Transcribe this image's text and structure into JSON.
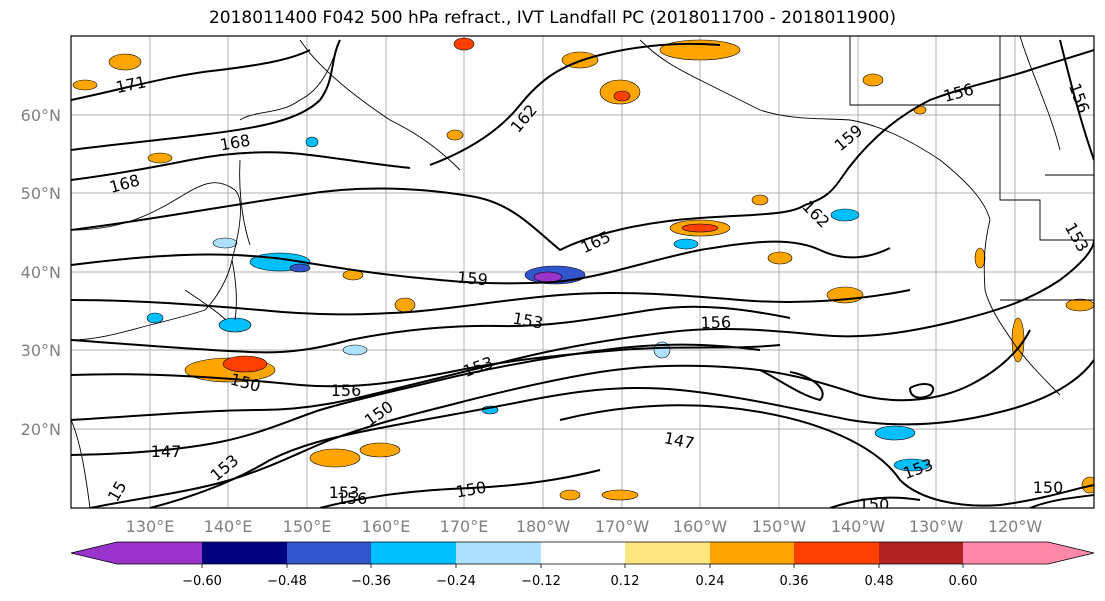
{
  "title": "2018011400 F042 500 hPa refract., IVT Landfall PC (2018011700 - 2018011900)",
  "lat_labels": [
    "60°N",
    "50°N",
    "40°N",
    "30°N",
    "20°N"
  ],
  "lon_labels": [
    "130°E",
    "140°E",
    "150°E",
    "160°E",
    "170°E",
    "180°W",
    "170°W",
    "160°W",
    "150°W",
    "140°W",
    "130°W",
    "120°W"
  ],
  "contour_labels": [
    {
      "text": "171",
      "rot": -12
    },
    {
      "text": "168",
      "rot": -10
    },
    {
      "text": "168",
      "rot": -15
    },
    {
      "text": "162",
      "rot": -50
    },
    {
      "text": "159",
      "rot": -40
    },
    {
      "text": "156",
      "rot": -15
    },
    {
      "text": "156",
      "rot": 70
    },
    {
      "text": "165",
      "rot": -25
    },
    {
      "text": "162",
      "rot": 45
    },
    {
      "text": "159",
      "rot": 5
    },
    {
      "text": "153",
      "rot": 10
    },
    {
      "text": "156",
      "rot": -2
    },
    {
      "text": "153",
      "rot": -20
    },
    {
      "text": "150",
      "rot": 15
    },
    {
      "text": "156",
      "rot": 0
    },
    {
      "text": "150",
      "rot": -35
    },
    {
      "text": "147",
      "rot": 0
    },
    {
      "text": "153",
      "rot": -40
    },
    {
      "text": "147",
      "rot": 12
    },
    {
      "text": "153",
      "rot": -20
    },
    {
      "text": "150",
      "rot": 0
    },
    {
      "text": "150",
      "rot": 0
    },
    {
      "text": "153",
      "rot": 60
    },
    {
      "text": "153",
      "rot": 0
    },
    {
      "text": "156",
      "rot": 0
    },
    {
      "text": "150",
      "rot": -10
    },
    {
      "text": "15",
      "rot": -60
    }
  ],
  "colorbar": {
    "ticks": [
      "−0.60",
      "−0.48",
      "−0.36",
      "−0.24",
      "−0.12",
      "0.12",
      "0.24",
      "0.36",
      "0.48",
      "0.60"
    ],
    "colors": [
      "#9933cc",
      "#000080",
      "#3355cc",
      "#00bfff",
      "#aee0ff",
      "#ffffff",
      "#ffe680",
      "#ffa500",
      "#ff4000",
      "#b22222",
      "#ff88aa"
    ]
  }
}
